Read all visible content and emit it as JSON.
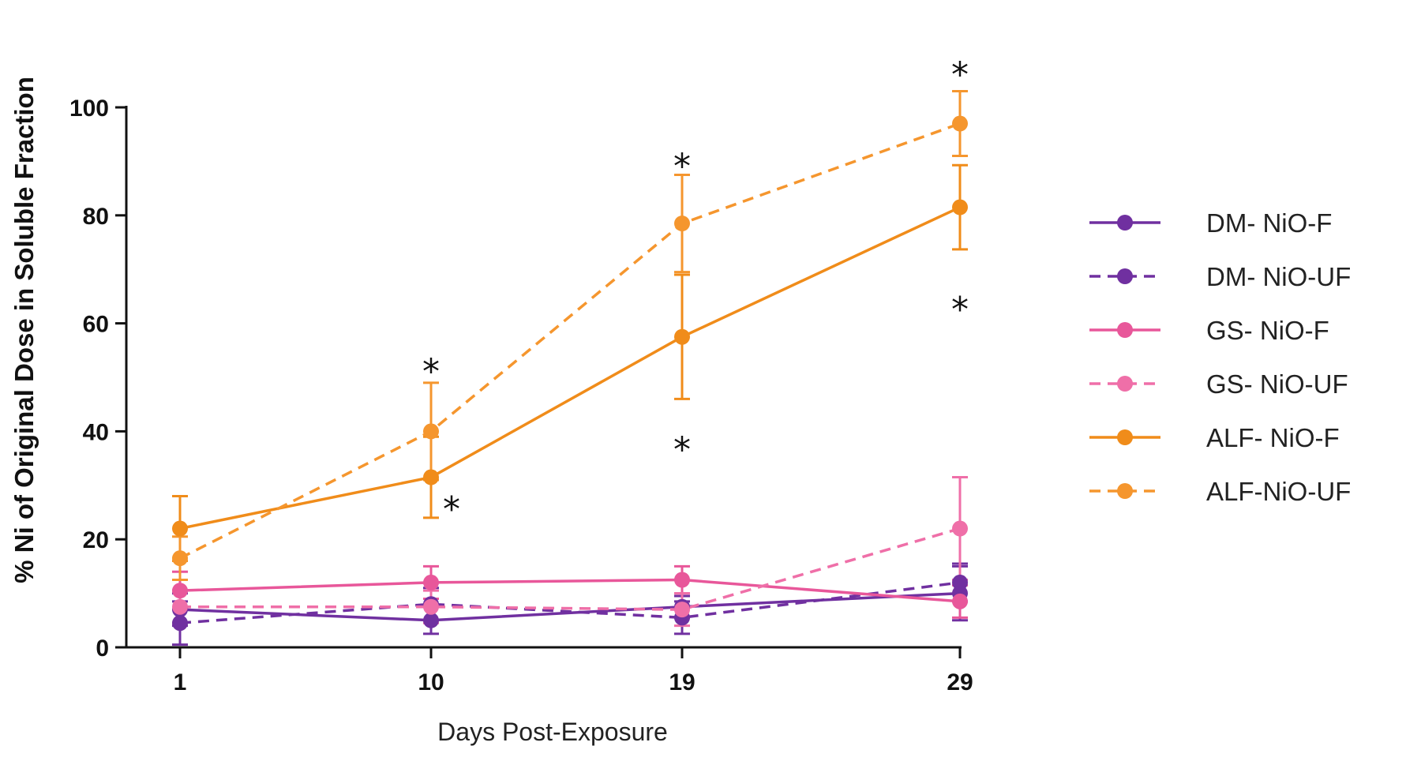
{
  "chart_data": {
    "type": "line",
    "xlabel": "Days Post-Exposure",
    "ylabel": "% Ni of Original Dose in Soluble Fraction",
    "x": [
      1,
      10,
      19,
      29
    ],
    "xticks": [
      "1",
      "10",
      "19",
      "29"
    ],
    "ylim": [
      0,
      100
    ],
    "yticks": [
      "0",
      "20",
      "40",
      "60",
      "80",
      "100"
    ],
    "grid": false,
    "legend_position": "right",
    "series": [
      {
        "name": "DM- NiO-F",
        "color": "#7030a0",
        "dashed": false,
        "values": [
          7,
          5,
          7.5,
          10
        ],
        "errors": [
          3,
          2.5,
          2,
          5
        ]
      },
      {
        "name": "DM- NiO-UF",
        "color": "#7030a0",
        "dashed": true,
        "values": [
          4.5,
          8,
          5.5,
          12
        ],
        "errors": [
          4,
          3,
          3,
          3.5
        ]
      },
      {
        "name": "GS- NiO-F",
        "color": "#e8579a",
        "dashed": false,
        "values": [
          10.5,
          12,
          12.5,
          8.5
        ],
        "errors": [
          3.5,
          3,
          2.5,
          3
        ]
      },
      {
        "name": "GS- NiO-UF",
        "color": "#ef6fa8",
        "dashed": true,
        "values": [
          7.5,
          7.5,
          7,
          22
        ],
        "errors": [
          3,
          3,
          3,
          9.5
        ]
      },
      {
        "name": "ALF- NiO-F",
        "color": "#f08c1a",
        "dashed": false,
        "values": [
          22,
          31.5,
          57.5,
          81.5
        ],
        "errors": [
          6,
          7.5,
          11.5,
          7.8
        ]
      },
      {
        "name": "ALF-NiO-UF",
        "color": "#f5962e",
        "dashed": true,
        "values": [
          16.5,
          40,
          78.5,
          97
        ],
        "errors": [
          4,
          9,
          9,
          6
        ]
      }
    ],
    "annotations": [
      {
        "text": "*",
        "x": 10,
        "y": 53
      },
      {
        "text": "*",
        "x": 10,
        "y": 27.5
      },
      {
        "text": "*",
        "x": 19,
        "y": 91
      },
      {
        "text": "*",
        "x": 19,
        "y": 38.5
      },
      {
        "text": "*",
        "x": 29,
        "y": 108
      },
      {
        "text": "*",
        "x": 29,
        "y": 64.5
      }
    ]
  }
}
